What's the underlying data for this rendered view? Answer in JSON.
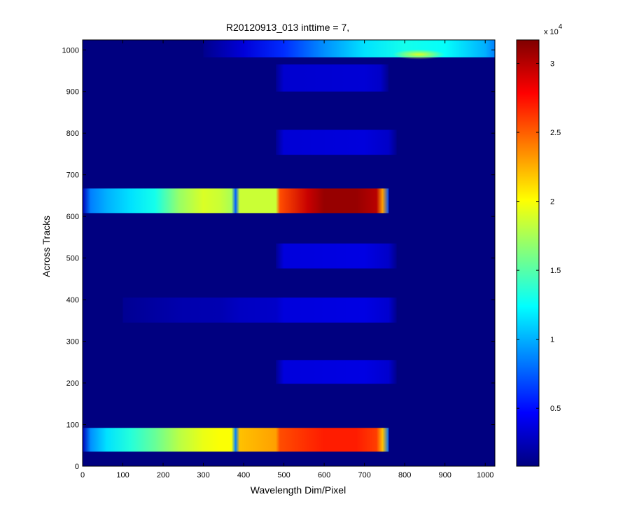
{
  "chart_data": {
    "type": "heatmap",
    "title": "R20120913_013 inttime = 7,",
    "xlabel": "Wavelength Dim/Pixel",
    "ylabel": "Across Tracks",
    "xlim": [
      0,
      1024
    ],
    "ylim": [
      0,
      1024
    ],
    "x_ticks": [
      0,
      100,
      200,
      300,
      400,
      500,
      600,
      700,
      800,
      900,
      1000
    ],
    "y_ticks": [
      0,
      100,
      200,
      300,
      400,
      500,
      600,
      700,
      800,
      900,
      1000
    ],
    "colorbar": {
      "colormap": "jet",
      "min": 800,
      "max": 31700,
      "ticks": [
        0.5,
        1,
        1.5,
        2,
        2.5,
        3
      ],
      "tick_labels": [
        "0.5",
        "1",
        "1.5",
        "2",
        "2.5",
        "3"
      ],
      "exponent_base": "x 10",
      "exponent_power": "4",
      "scale": 10000
    },
    "background_value": 800,
    "bands": [
      {
        "y_range": [
          35,
          92
        ],
        "x_range": [
          0,
          760
        ],
        "profile": [
          [
            0,
            2500
          ],
          [
            20,
            9000
          ],
          [
            60,
            11500
          ],
          [
            120,
            13500
          ],
          [
            180,
            15500
          ],
          [
            240,
            18000
          ],
          [
            300,
            19500
          ],
          [
            340,
            20000
          ],
          [
            370,
            20000
          ],
          [
            380,
            8500
          ],
          [
            390,
            22000
          ],
          [
            480,
            23000
          ],
          [
            490,
            25500
          ],
          [
            560,
            26500
          ],
          [
            600,
            27000
          ],
          [
            680,
            27000
          ],
          [
            730,
            26000
          ],
          [
            745,
            22000
          ],
          [
            760,
            8000
          ]
        ]
      },
      {
        "y_range": [
          608,
          667
        ],
        "x_range": [
          0,
          760
        ],
        "profile": [
          [
            0,
            2500
          ],
          [
            20,
            8500
          ],
          [
            60,
            10000
          ],
          [
            120,
            11500
          ],
          [
            180,
            13000
          ],
          [
            240,
            17000
          ],
          [
            300,
            19000
          ],
          [
            340,
            18500
          ],
          [
            370,
            17500
          ],
          [
            380,
            7500
          ],
          [
            390,
            18500
          ],
          [
            480,
            18500
          ],
          [
            490,
            25500
          ],
          [
            560,
            29500
          ],
          [
            600,
            31000
          ],
          [
            680,
            31000
          ],
          [
            730,
            30000
          ],
          [
            745,
            23000
          ],
          [
            760,
            7000
          ]
        ]
      },
      {
        "y_range": [
          198,
          255
        ],
        "x_range": [
          480,
          780
        ],
        "profile": [
          [
            480,
            1400
          ],
          [
            500,
            3600
          ],
          [
            700,
            3800
          ],
          [
            760,
            3200
          ],
          [
            780,
            1200
          ]
        ]
      },
      {
        "y_range": [
          345,
          405
        ],
        "x_range": [
          100,
          780
        ],
        "profile": [
          [
            100,
            1400
          ],
          [
            250,
            2200
          ],
          [
            340,
            2300
          ],
          [
            390,
            2800
          ],
          [
            480,
            3000
          ],
          [
            500,
            3600
          ],
          [
            700,
            3800
          ],
          [
            760,
            3200
          ],
          [
            780,
            1200
          ]
        ]
      },
      {
        "y_range": [
          475,
          535
        ],
        "x_range": [
          480,
          780
        ],
        "profile": [
          [
            480,
            1400
          ],
          [
            500,
            3600
          ],
          [
            700,
            3800
          ],
          [
            760,
            3000
          ],
          [
            780,
            1200
          ]
        ]
      },
      {
        "y_range": [
          748,
          808
        ],
        "x_range": [
          480,
          780
        ],
        "profile": [
          [
            480,
            1400
          ],
          [
            500,
            3400
          ],
          [
            700,
            3600
          ],
          [
            760,
            3000
          ],
          [
            780,
            1200
          ]
        ]
      },
      {
        "y_range": [
          900,
          965
        ],
        "x_range": [
          480,
          760
        ],
        "profile": [
          [
            480,
            1400
          ],
          [
            500,
            3200
          ],
          [
            700,
            3400
          ],
          [
            740,
            3000
          ],
          [
            760,
            1200
          ]
        ]
      },
      {
        "y_range": [
          982,
          1024
        ],
        "x_range": [
          300,
          1024
        ],
        "profile": [
          [
            300,
            1200
          ],
          [
            400,
            3500
          ],
          [
            500,
            6000
          ],
          [
            600,
            9000
          ],
          [
            700,
            11500
          ],
          [
            800,
            13000
          ],
          [
            900,
            12500
          ],
          [
            1000,
            10000
          ],
          [
            1024,
            8500
          ]
        ]
      }
    ],
    "hotspot": {
      "x_range": [
        770,
        900
      ],
      "y_range": [
        982,
        996
      ],
      "value": 19000
    }
  }
}
